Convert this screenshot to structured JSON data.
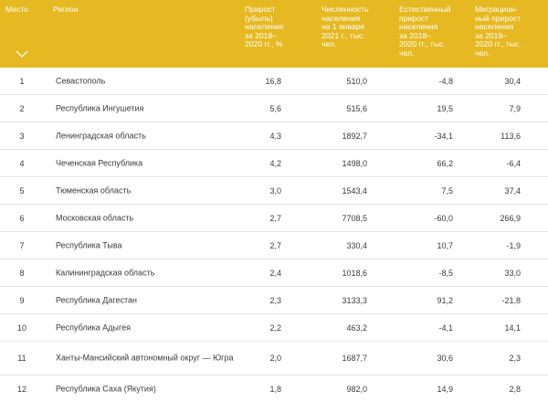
{
  "header": {
    "place": "Место",
    "region": "Регион",
    "growth": "Прирост\n(убыль)\nнаселения\nза 2018–\n2020 гг., %",
    "population": "Численность\nнаселения\nна 1 января\n2021 г., тыс.\nчел.",
    "natural": "Естественный\nприрост\nнаселения\nза 2018–\n2020 гг., тыс.\nчел.",
    "migration": "Миграцион-\nный прирост\nнаселения\nза 2018–\n2020 гг., тыс.\nчел."
  },
  "sort_icon": "chevron-down",
  "colors": {
    "header_bg": "#e6b922",
    "header_text": "#ffffff",
    "row_border": "#e3e3e3"
  },
  "rows": [
    {
      "place": "1",
      "region": "Севастополь",
      "growth": "16,8",
      "population": "510,0",
      "natural": "-4,8",
      "migration": "30,4"
    },
    {
      "place": "2",
      "region": "Республика Ингушетия",
      "growth": "5,6",
      "population": "515,6",
      "natural": "19,5",
      "migration": "7,9"
    },
    {
      "place": "3",
      "region": "Ленинградская область",
      "growth": "4,3",
      "population": "1892,7",
      "natural": "-34,1",
      "migration": "113,6"
    },
    {
      "place": "4",
      "region": "Чеченская Республика",
      "growth": "4,2",
      "population": "1498,0",
      "natural": "66,2",
      "migration": "-6,4"
    },
    {
      "place": "5",
      "region": "Тюменская область",
      "growth": "3,0",
      "population": "1543,4",
      "natural": "7,5",
      "migration": "37,4"
    },
    {
      "place": "6",
      "region": "Московская область",
      "growth": "2,7",
      "population": "7708,5",
      "natural": "-60,0",
      "migration": "266,9"
    },
    {
      "place": "7",
      "region": "Республика Тыва",
      "growth": "2,7",
      "population": "330,4",
      "natural": "10,7",
      "migration": "-1,9"
    },
    {
      "place": "8",
      "region": "Калининградская область",
      "growth": "2,4",
      "population": "1018,6",
      "natural": "-8,5",
      "migration": "33,0"
    },
    {
      "place": "9",
      "region": "Республика Дагестан",
      "growth": "2,3",
      "population": "3133,3",
      "natural": "91,2",
      "migration": "-21,8"
    },
    {
      "place": "10",
      "region": "Республика Адыгея",
      "growth": "2,2",
      "population": "463,2",
      "natural": "-4,1",
      "migration": "14,1"
    },
    {
      "place": "11",
      "region": "Ханты-Мансийский автономный округ — Югра",
      "growth": "2,0",
      "population": "1687,7",
      "natural": "30,6",
      "migration": "2,3"
    },
    {
      "place": "12",
      "region": "Республика Саха (Якутия)",
      "growth": "1,8",
      "population": "982,0",
      "natural": "14,9",
      "migration": "2,8"
    }
  ]
}
